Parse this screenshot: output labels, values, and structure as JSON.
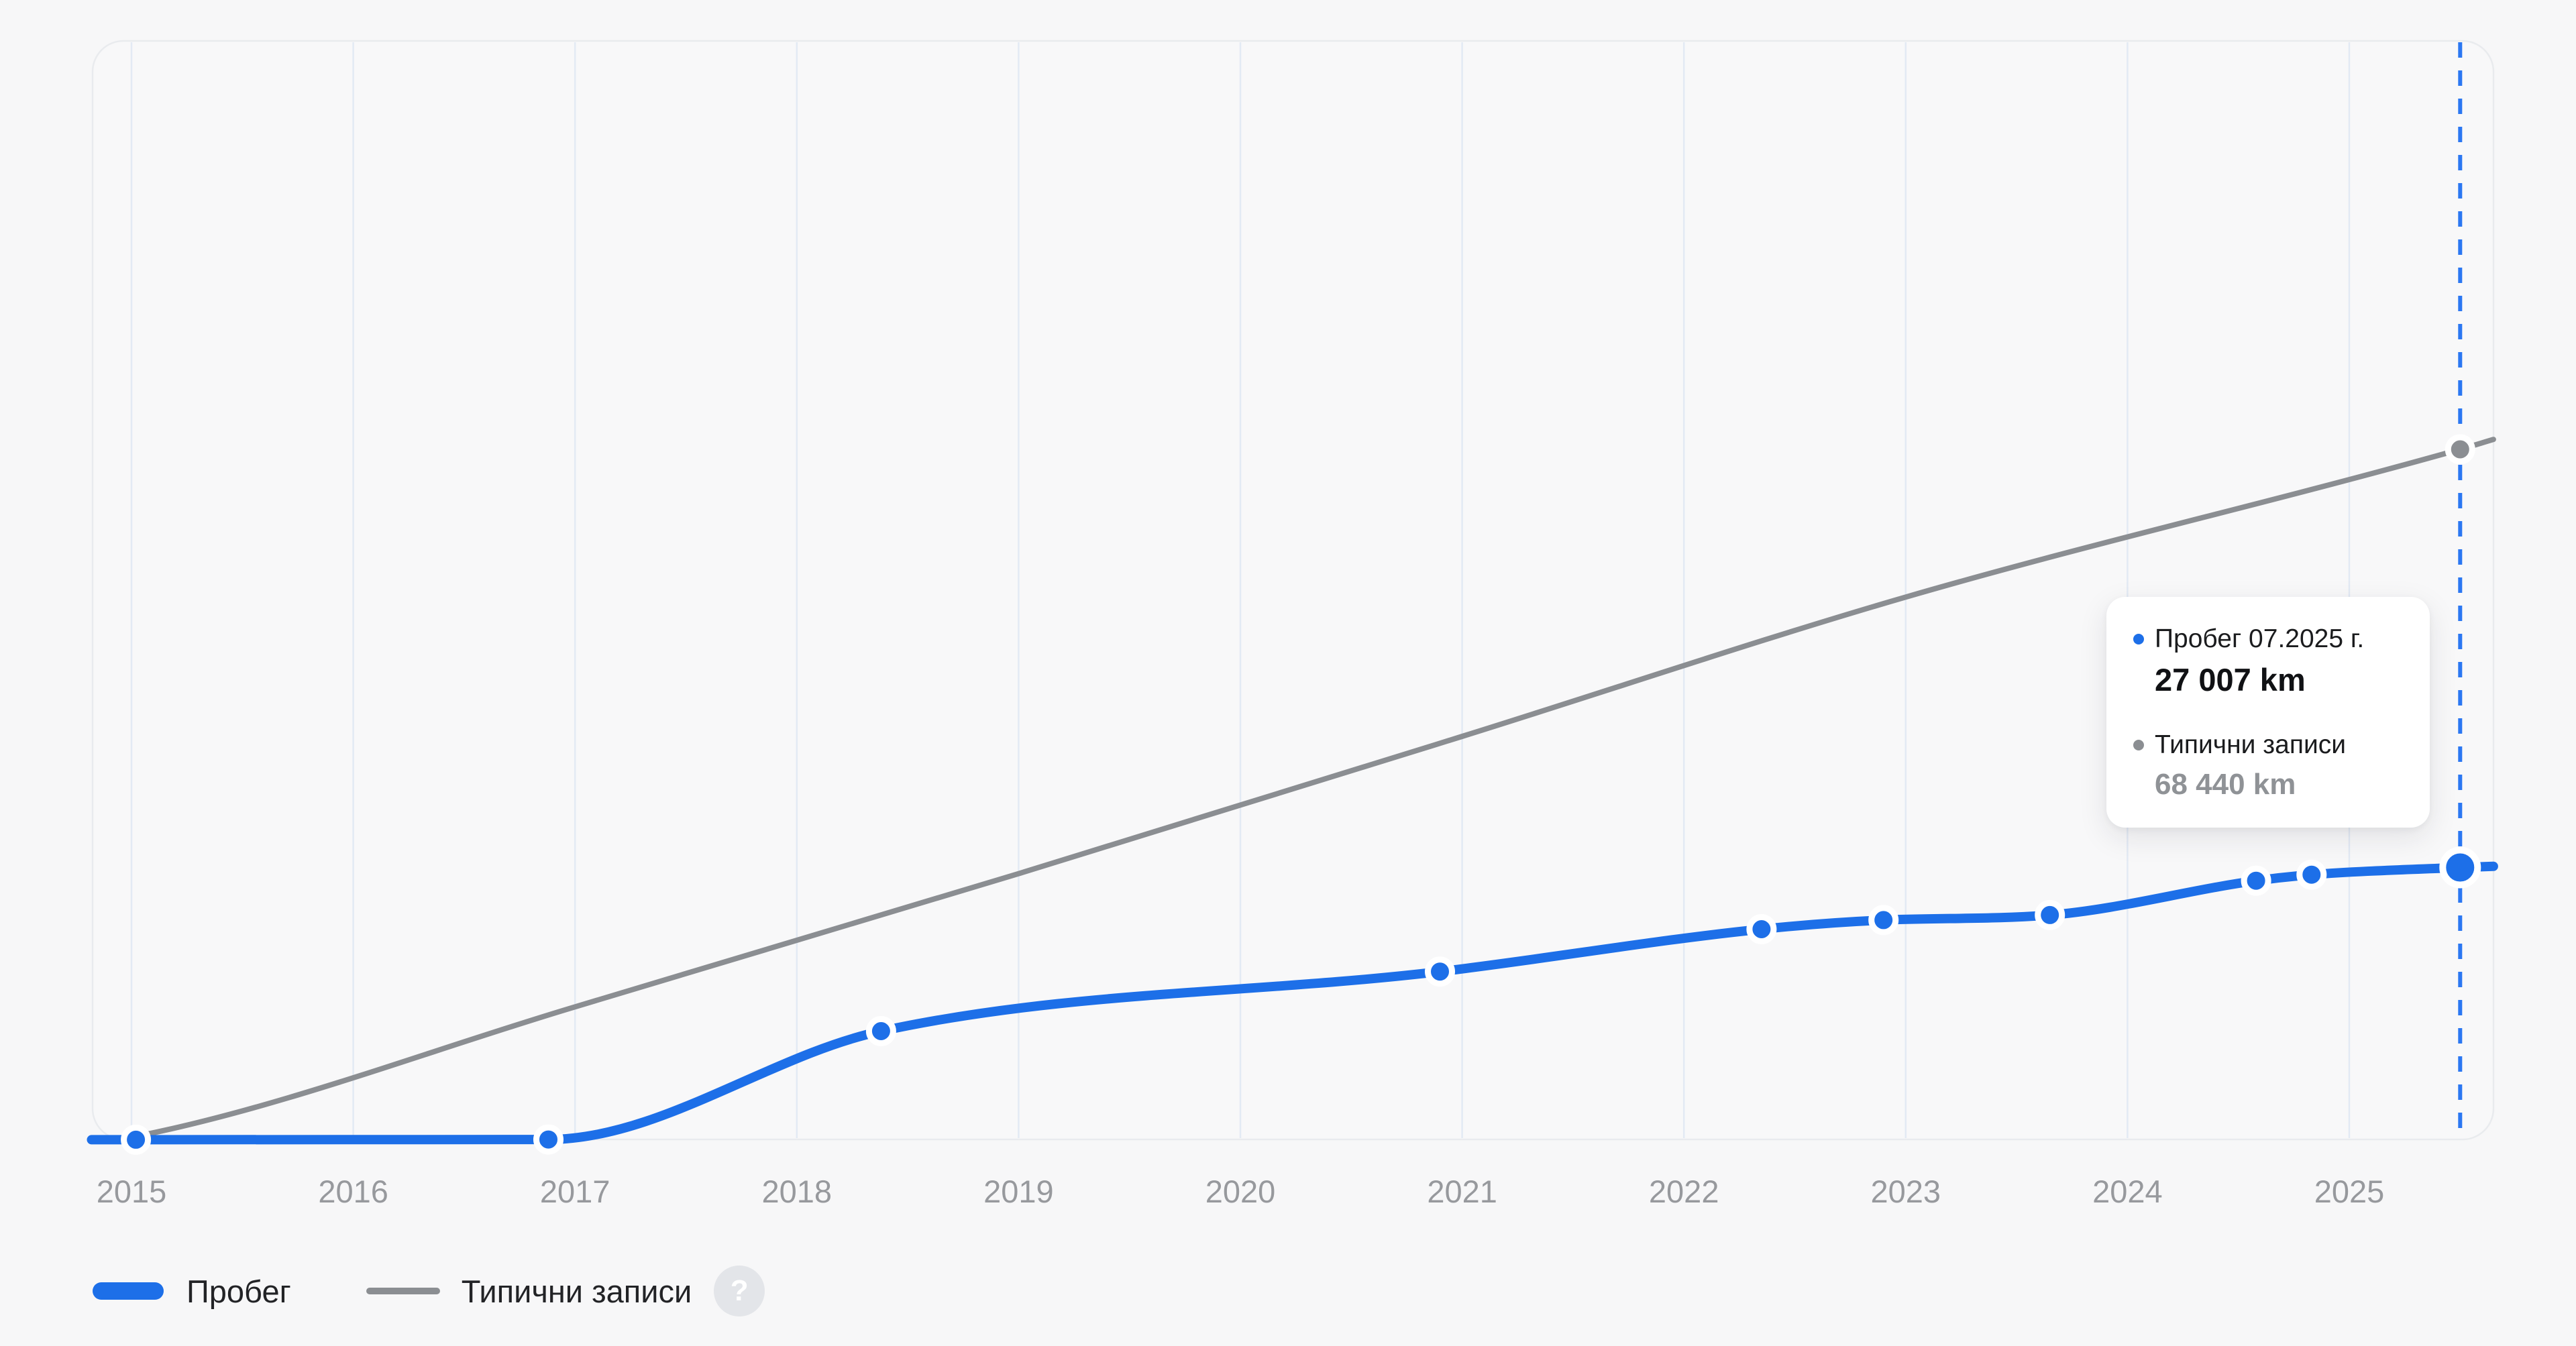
{
  "page": {
    "background_color": "#f7f7f8"
  },
  "chart_data": {
    "type": "line",
    "title": "",
    "x_axis": {
      "tick_labels": [
        "2015",
        "2016",
        "2017",
        "2018",
        "2019",
        "2020",
        "2021",
        "2022",
        "2023",
        "2024",
        "2025"
      ],
      "first_year": 2015,
      "grid": true
    },
    "y_axis": {
      "unit": "km",
      "range": [
        0,
        109000
      ],
      "visible": false
    },
    "marker": {
      "x_year": 2025.5,
      "style": "dashed-vertical",
      "color": "#2b77f2"
    },
    "series": [
      {
        "id": "mileage",
        "name": "Пробег",
        "color": "#1d6fe8",
        "line_width": 14,
        "points": [
          {
            "year": 2014.82,
            "km": 40,
            "dot": false
          },
          {
            "year": 2015.02,
            "km": 40,
            "dot": true
          },
          {
            "year": 2016.88,
            "km": 60,
            "dot": true
          },
          {
            "year": 2018.38,
            "km": 10800,
            "dot": true
          },
          {
            "year": 2020.9,
            "km": 16700,
            "dot": true
          },
          {
            "year": 2022.35,
            "km": 20900,
            "dot": true
          },
          {
            "year": 2022.9,
            "km": 21800,
            "dot": true
          },
          {
            "year": 2023.65,
            "km": 22300,
            "dot": true
          },
          {
            "year": 2024.58,
            "km": 25700,
            "dot": true
          },
          {
            "year": 2024.83,
            "km": 26300,
            "dot": true
          },
          {
            "year": 2025.5,
            "km": 27007,
            "dot": true,
            "big": true
          },
          {
            "year": 2025.65,
            "km": 27120,
            "dot": false
          }
        ]
      },
      {
        "id": "typical",
        "name": "Типични записи",
        "color": "#8b8e92",
        "line_width": 8,
        "points": [
          {
            "year": 2014.85,
            "km": 0,
            "dot": false
          },
          {
            "year": 2015.05,
            "km": 500,
            "dot": false
          },
          {
            "year": 2017.0,
            "km": 13200,
            "dot": false
          },
          {
            "year": 2019.0,
            "km": 26400,
            "dot": false
          },
          {
            "year": 2021.0,
            "km": 40000,
            "dot": false
          },
          {
            "year": 2023.0,
            "km": 53800,
            "dot": false
          },
          {
            "year": 2025.5,
            "km": 68440,
            "dot": true
          },
          {
            "year": 2025.65,
            "km": 69420,
            "dot": false
          }
        ]
      }
    ]
  },
  "tooltip": {
    "series1_label": "Пробег 07.2025 г.",
    "series1_value": "27 007 km",
    "series2_label": "Типични записи",
    "series2_value": "68 440 km"
  },
  "legend": {
    "item1_label": "Пробег",
    "item2_label": "Типични записи",
    "help_label": "?"
  },
  "colors": {
    "mileage_blue": "#1d6fe8",
    "typical_gray": "#8b8e92",
    "grid_line": "#e3eaf4",
    "panel_border": "#e9ebee",
    "panel_fill": "#f8f8f9",
    "axis_text": "#97999d"
  }
}
